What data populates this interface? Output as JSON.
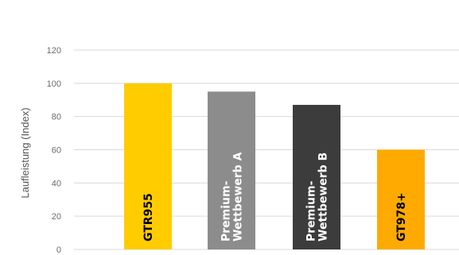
{
  "chart_data": {
    "type": "bar",
    "title": "",
    "xlabel": "",
    "ylabel": "Laufleistung (Index)",
    "ylim": [
      0,
      120
    ],
    "yticks": [
      0,
      20,
      40,
      60,
      80,
      100,
      120
    ],
    "grid": true,
    "legend": "none",
    "categories": [
      "GTR955",
      "Premium-Wettbewerb A",
      "Premium-Wettbewerb B",
      "GT978+"
    ],
    "label_lines": [
      [
        "GTR955"
      ],
      [
        "Premium-",
        "Wettbewerb A"
      ],
      [
        "Premium-",
        "Wettbewerb B"
      ],
      [
        "GT978+"
      ]
    ],
    "values": [
      100,
      95,
      87,
      60
    ],
    "colors": [
      "#ffcc00",
      "#8c8c8c",
      "#3c3c3c",
      "#ffaa00"
    ],
    "label_colors": [
      "#000000",
      "#ffffff",
      "#ffffff",
      "#000000"
    ]
  }
}
